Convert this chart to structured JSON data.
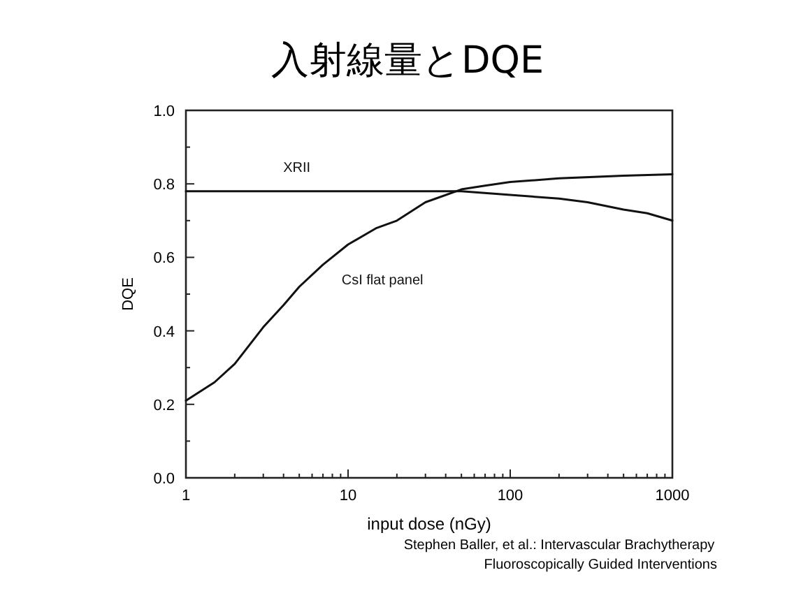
{
  "chart_data": {
    "type": "line",
    "title": "入射線量とDQE",
    "xlabel": "input dose (nGy)",
    "ylabel": "DQE",
    "log": "x",
    "xlim": [
      1,
      1000
    ],
    "ylim": [
      0,
      1
    ],
    "xticks": [
      1,
      10,
      100,
      1000
    ],
    "yticks": [
      {
        "value": 0,
        "label": "0.0"
      },
      {
        "value": 0.2,
        "label": "0.2"
      },
      {
        "value": 0.4,
        "label": "0.4"
      },
      {
        "value": 0.6,
        "label": "0.6"
      },
      {
        "value": 0.8,
        "label": "0.8"
      },
      {
        "value": 1,
        "label": "1.0"
      }
    ],
    "grid": false,
    "line_style": "solid",
    "series": [
      {
        "name": "XRII",
        "color": "#111111",
        "x": [
          1,
          3,
          10,
          30,
          50,
          100,
          200,
          300,
          500,
          700,
          1000
        ],
        "values": [
          0.78,
          0.78,
          0.78,
          0.78,
          0.78,
          0.77,
          0.76,
          0.75,
          0.73,
          0.72,
          0.7
        ]
      },
      {
        "name": "CsI flat panel",
        "color": "#111111",
        "x": [
          1,
          1.5,
          2,
          3,
          4,
          5,
          7,
          10,
          15,
          20,
          30,
          50,
          70,
          100,
          200,
          500,
          1000
        ],
        "values": [
          0.21,
          0.26,
          0.31,
          0.41,
          0.47,
          0.52,
          0.58,
          0.635,
          0.68,
          0.7,
          0.75,
          0.785,
          0.795,
          0.805,
          0.815,
          0.822,
          0.826
        ]
      }
    ],
    "annotations": [
      "Stephen Baller, et al.: Intervascular Brachytherapy",
      "Fluoroscopically Guided Interventions"
    ]
  }
}
